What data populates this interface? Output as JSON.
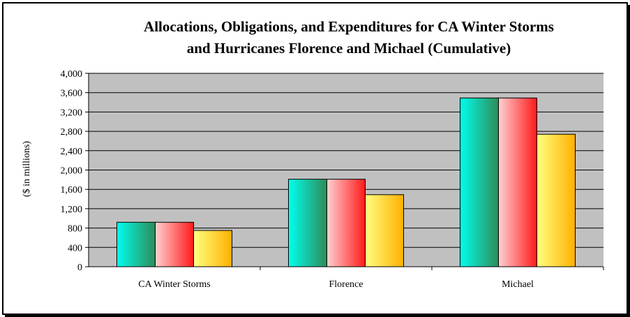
{
  "chart_data": {
    "type": "bar",
    "title_lines": [
      "Allocations, Obligations, and Expenditures for CA Winter Storms",
      "and Hurricanes Florence and Michael (Cumulative)"
    ],
    "ylabel": "($ in millions)",
    "xlabel": "",
    "categories": [
      "CA Winter Storms",
      "Florence",
      "Michael"
    ],
    "ylim": [
      0,
      4000
    ],
    "yticks": [
      0,
      400,
      800,
      1200,
      1600,
      2000,
      2400,
      2800,
      3200,
      3600,
      4000
    ],
    "ytick_labels": [
      "0",
      "400",
      "800",
      "1,200",
      "1,600",
      "2,000",
      "2,400",
      "2,800",
      "3,200",
      "3,600",
      "4,000"
    ],
    "grid": true,
    "legend": "none",
    "plot_background": "#c0c0c0",
    "series": [
      {
        "values": [
          920,
          1810,
          3490
        ],
        "color_light": "#00ffee",
        "color_dark": "#2e8b57"
      },
      {
        "values": [
          920,
          1810,
          3490
        ],
        "color_light": "#ffd0d0",
        "color_dark": "#ff1a1a"
      },
      {
        "values": [
          750,
          1490,
          2740
        ],
        "color_light": "#ffff80",
        "color_dark": "#ffb000"
      }
    ]
  }
}
